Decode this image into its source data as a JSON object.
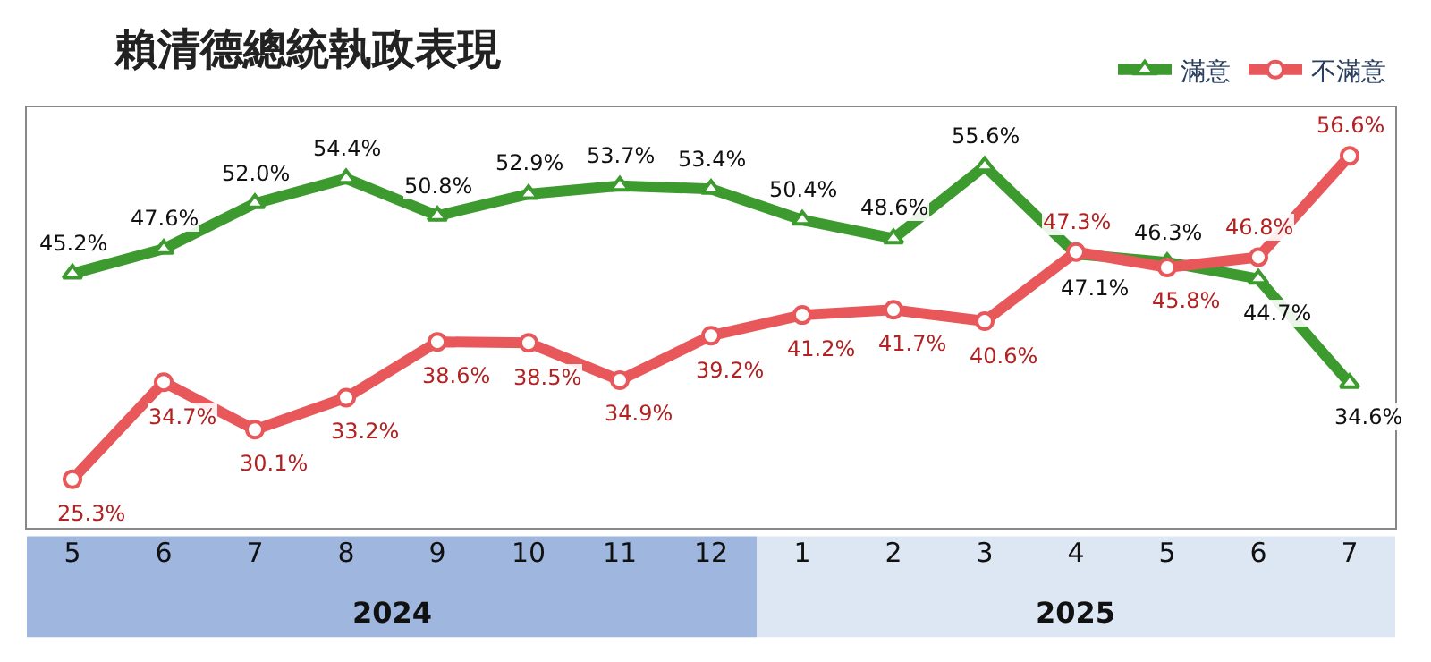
{
  "chart_data": {
    "type": "line",
    "title": "賴清德總統執政表現",
    "categories": [
      "5",
      "6",
      "7",
      "8",
      "9",
      "10",
      "11",
      "12",
      "1",
      "2",
      "3",
      "4",
      "5",
      "6",
      "7"
    ],
    "series": [
      {
        "name": "滿意",
        "color": "#3d9a2e",
        "marker": "triangle",
        "values": [
          45.2,
          47.6,
          52.0,
          54.4,
          50.8,
          52.9,
          53.7,
          53.4,
          50.4,
          48.6,
          55.6,
          47.1,
          46.3,
          44.7,
          34.6
        ],
        "value_labels": [
          "45.2%",
          "47.6%",
          "52.0%",
          "54.4%",
          "50.8%",
          "52.9%",
          "53.7%",
          "53.4%",
          "50.4%",
          "48.6%",
          "55.6%",
          "47.1%",
          "46.3%",
          "44.7%",
          "34.6%"
        ]
      },
      {
        "name": "不滿意",
        "color": "#e8585a",
        "marker": "circle",
        "values": [
          25.3,
          34.7,
          30.1,
          33.2,
          38.6,
          38.5,
          34.9,
          39.2,
          41.2,
          41.7,
          40.6,
          47.3,
          45.8,
          46.8,
          56.6
        ],
        "value_labels": [
          "25.3%",
          "34.7%",
          "30.1%",
          "33.2%",
          "38.6%",
          "38.5%",
          "34.9%",
          "39.2%",
          "41.2%",
          "41.7%",
          "40.6%",
          "47.3%",
          "45.8%",
          "46.8%",
          "56.6%"
        ]
      }
    ],
    "annotations": [
      "2024",
      "2025"
    ],
    "legend": "top right"
  }
}
